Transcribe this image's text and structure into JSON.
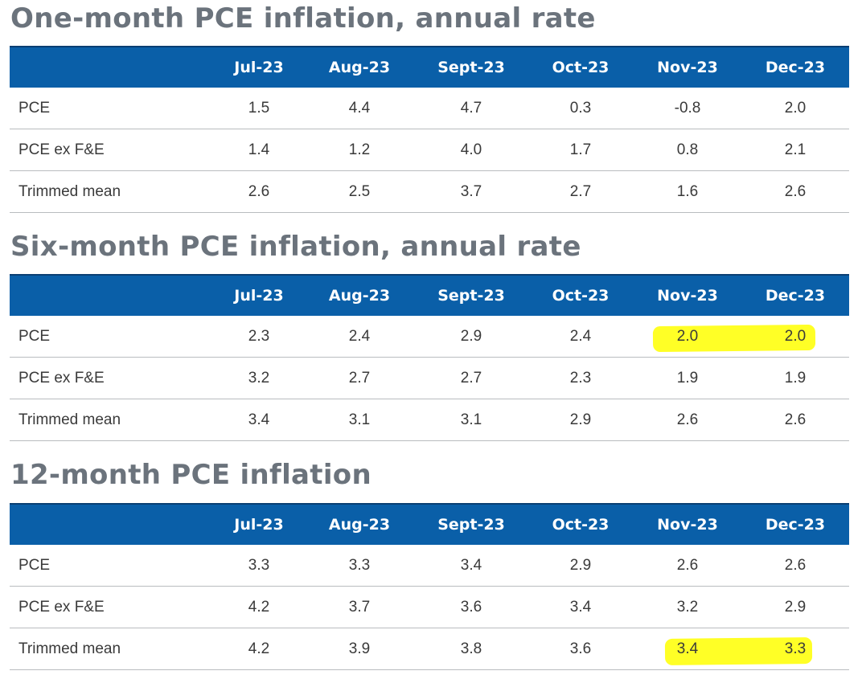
{
  "sections": [
    {
      "title": "One-month PCE inflation, annual rate",
      "headers": [
        "",
        "Jul-23",
        "Aug-23",
        "Sept-23",
        "Oct-23",
        "Nov-23",
        "Dec-23"
      ],
      "rows": [
        {
          "label": "PCE",
          "values": [
            "1.5",
            "4.4",
            "4.7",
            "0.3",
            "-0.8",
            "2.0"
          ]
        },
        {
          "label": "PCE ex F&E",
          "values": [
            "1.4",
            "1.2",
            "4.0",
            "1.7",
            "0.8",
            "2.1"
          ]
        },
        {
          "label": "Trimmed mean",
          "values": [
            "2.6",
            "2.5",
            "3.7",
            "2.7",
            "1.6",
            "2.6"
          ]
        }
      ]
    },
    {
      "title": "Six-month PCE inflation, annual rate",
      "headers": [
        "",
        "Jul-23",
        "Aug-23",
        "Sept-23",
        "Oct-23",
        "Nov-23",
        "Dec-23"
      ],
      "rows": [
        {
          "label": "PCE",
          "values": [
            "2.3",
            "2.4",
            "2.9",
            "2.4",
            "2.0",
            "2.0"
          ]
        },
        {
          "label": "PCE ex F&E",
          "values": [
            "3.2",
            "2.7",
            "2.7",
            "2.3",
            "1.9",
            "1.9"
          ]
        },
        {
          "label": "Trimmed mean",
          "values": [
            "3.4",
            "3.1",
            "3.1",
            "2.9",
            "2.6",
            "2.6"
          ]
        }
      ]
    },
    {
      "title": "12-month PCE inflation",
      "headers": [
        "",
        "Jul-23",
        "Aug-23",
        "Sept-23",
        "Oct-23",
        "Nov-23",
        "Dec-23"
      ],
      "rows": [
        {
          "label": "PCE",
          "values": [
            "3.3",
            "3.3",
            "3.4",
            "2.9",
            "2.6",
            "2.6"
          ]
        },
        {
          "label": "PCE ex F&E",
          "values": [
            "4.2",
            "3.7",
            "3.6",
            "3.4",
            "3.2",
            "2.9"
          ]
        },
        {
          "label": "Trimmed mean",
          "values": [
            "4.2",
            "3.9",
            "3.8",
            "3.6",
            "3.4",
            "3.3"
          ]
        }
      ]
    }
  ],
  "colors": {
    "header_bg": "#0a5fa8",
    "title_text": "#6b737c",
    "highlight": "#ffff1a"
  }
}
